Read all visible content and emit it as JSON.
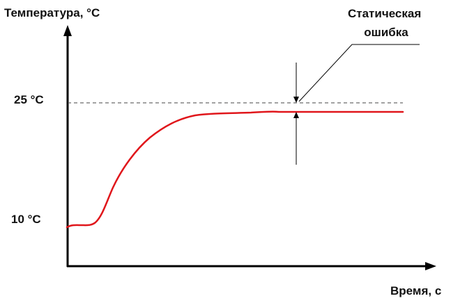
{
  "diagram": {
    "y_axis_label": "Температура, °C",
    "x_axis_label": "Время, с",
    "annotation": [
      "Статическая",
      "ошибка"
    ],
    "ticks": {
      "setpoint": "25 °C",
      "initial": "10 °C"
    },
    "colors": {
      "curve": "#e0161b",
      "axis": "#000000",
      "setpoint_line": "#444444"
    }
  }
}
